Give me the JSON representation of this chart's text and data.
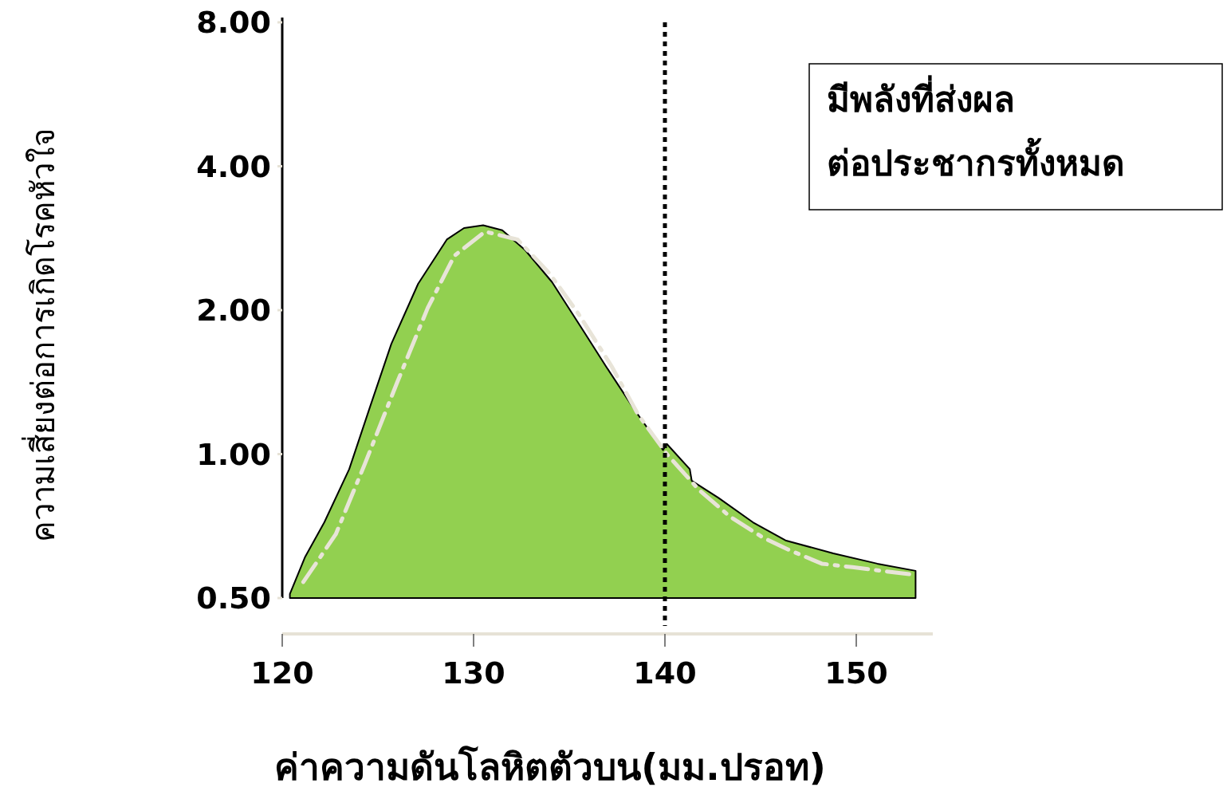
{
  "chart_data": {
    "type": "area",
    "xlabel": "ค่าความดันโลหิตตัวบน(มม.ปรอท)",
    "ylabel": "ความเสี่ยงต่อการเกิดโรคหัวใจ",
    "log": true,
    "xlim": [
      120,
      154
    ],
    "xticks": [
      120,
      130,
      140,
      150
    ],
    "ylim": [
      0.5,
      8
    ],
    "yticks": [
      {
        "value": 0.5,
        "label": "0.50"
      },
      {
        "value": 1,
        "label": "1.00"
      },
      {
        "value": 2,
        "label": "2.00"
      },
      {
        "value": 4,
        "label": "4.00"
      },
      {
        "value": 8,
        "label": "8.00"
      }
    ],
    "grid": false,
    "series": [
      {
        "color": "#92d050",
        "x": [
          120.4,
          121.2,
          122.2,
          123.5,
          124.6,
          125.7,
          127.1,
          128.6,
          129.5,
          130.5,
          131.5,
          132.7,
          134.1,
          135.7,
          136.9,
          138.4,
          139.9,
          140.1,
          141.3,
          141.4,
          142.8,
          144.6,
          146.3,
          148.8,
          151.1,
          153.1
        ],
        "values": [
          0.51,
          0.61,
          0.72,
          0.93,
          1.26,
          1.7,
          2.27,
          2.81,
          2.97,
          3.01,
          2.94,
          2.67,
          2.29,
          1.82,
          1.53,
          1.24,
          1.02,
          1.05,
          0.93,
          0.88,
          0.81,
          0.72,
          0.66,
          0.62,
          0.59,
          0.57
        ]
      },
      {
        "type": "line",
        "color": "#e8e4d8",
        "line_style": "dashed",
        "x": [
          121.1,
          122.8,
          124.3,
          126.0,
          127.6,
          129.0,
          130.6,
          132.3,
          134.0,
          135.5,
          137.2,
          138.6,
          140.1,
          141.8,
          143.4,
          145.1,
          146.5,
          148.2,
          149.8,
          152.9
        ],
        "values": [
          0.54,
          0.68,
          0.95,
          1.41,
          2.02,
          2.6,
          2.92,
          2.81,
          2.38,
          1.96,
          1.53,
          1.21,
          1.0,
          0.84,
          0.74,
          0.67,
          0.63,
          0.59,
          0.58,
          0.56
        ]
      }
    ],
    "ref_lines": [
      {
        "axis": "x",
        "value": 140,
        "color": "#000000",
        "line_style": "dotted"
      }
    ],
    "annotations": [
      "มีพลังที่ส่งผล\nต่อประชากรทั้งหมด"
    ]
  }
}
